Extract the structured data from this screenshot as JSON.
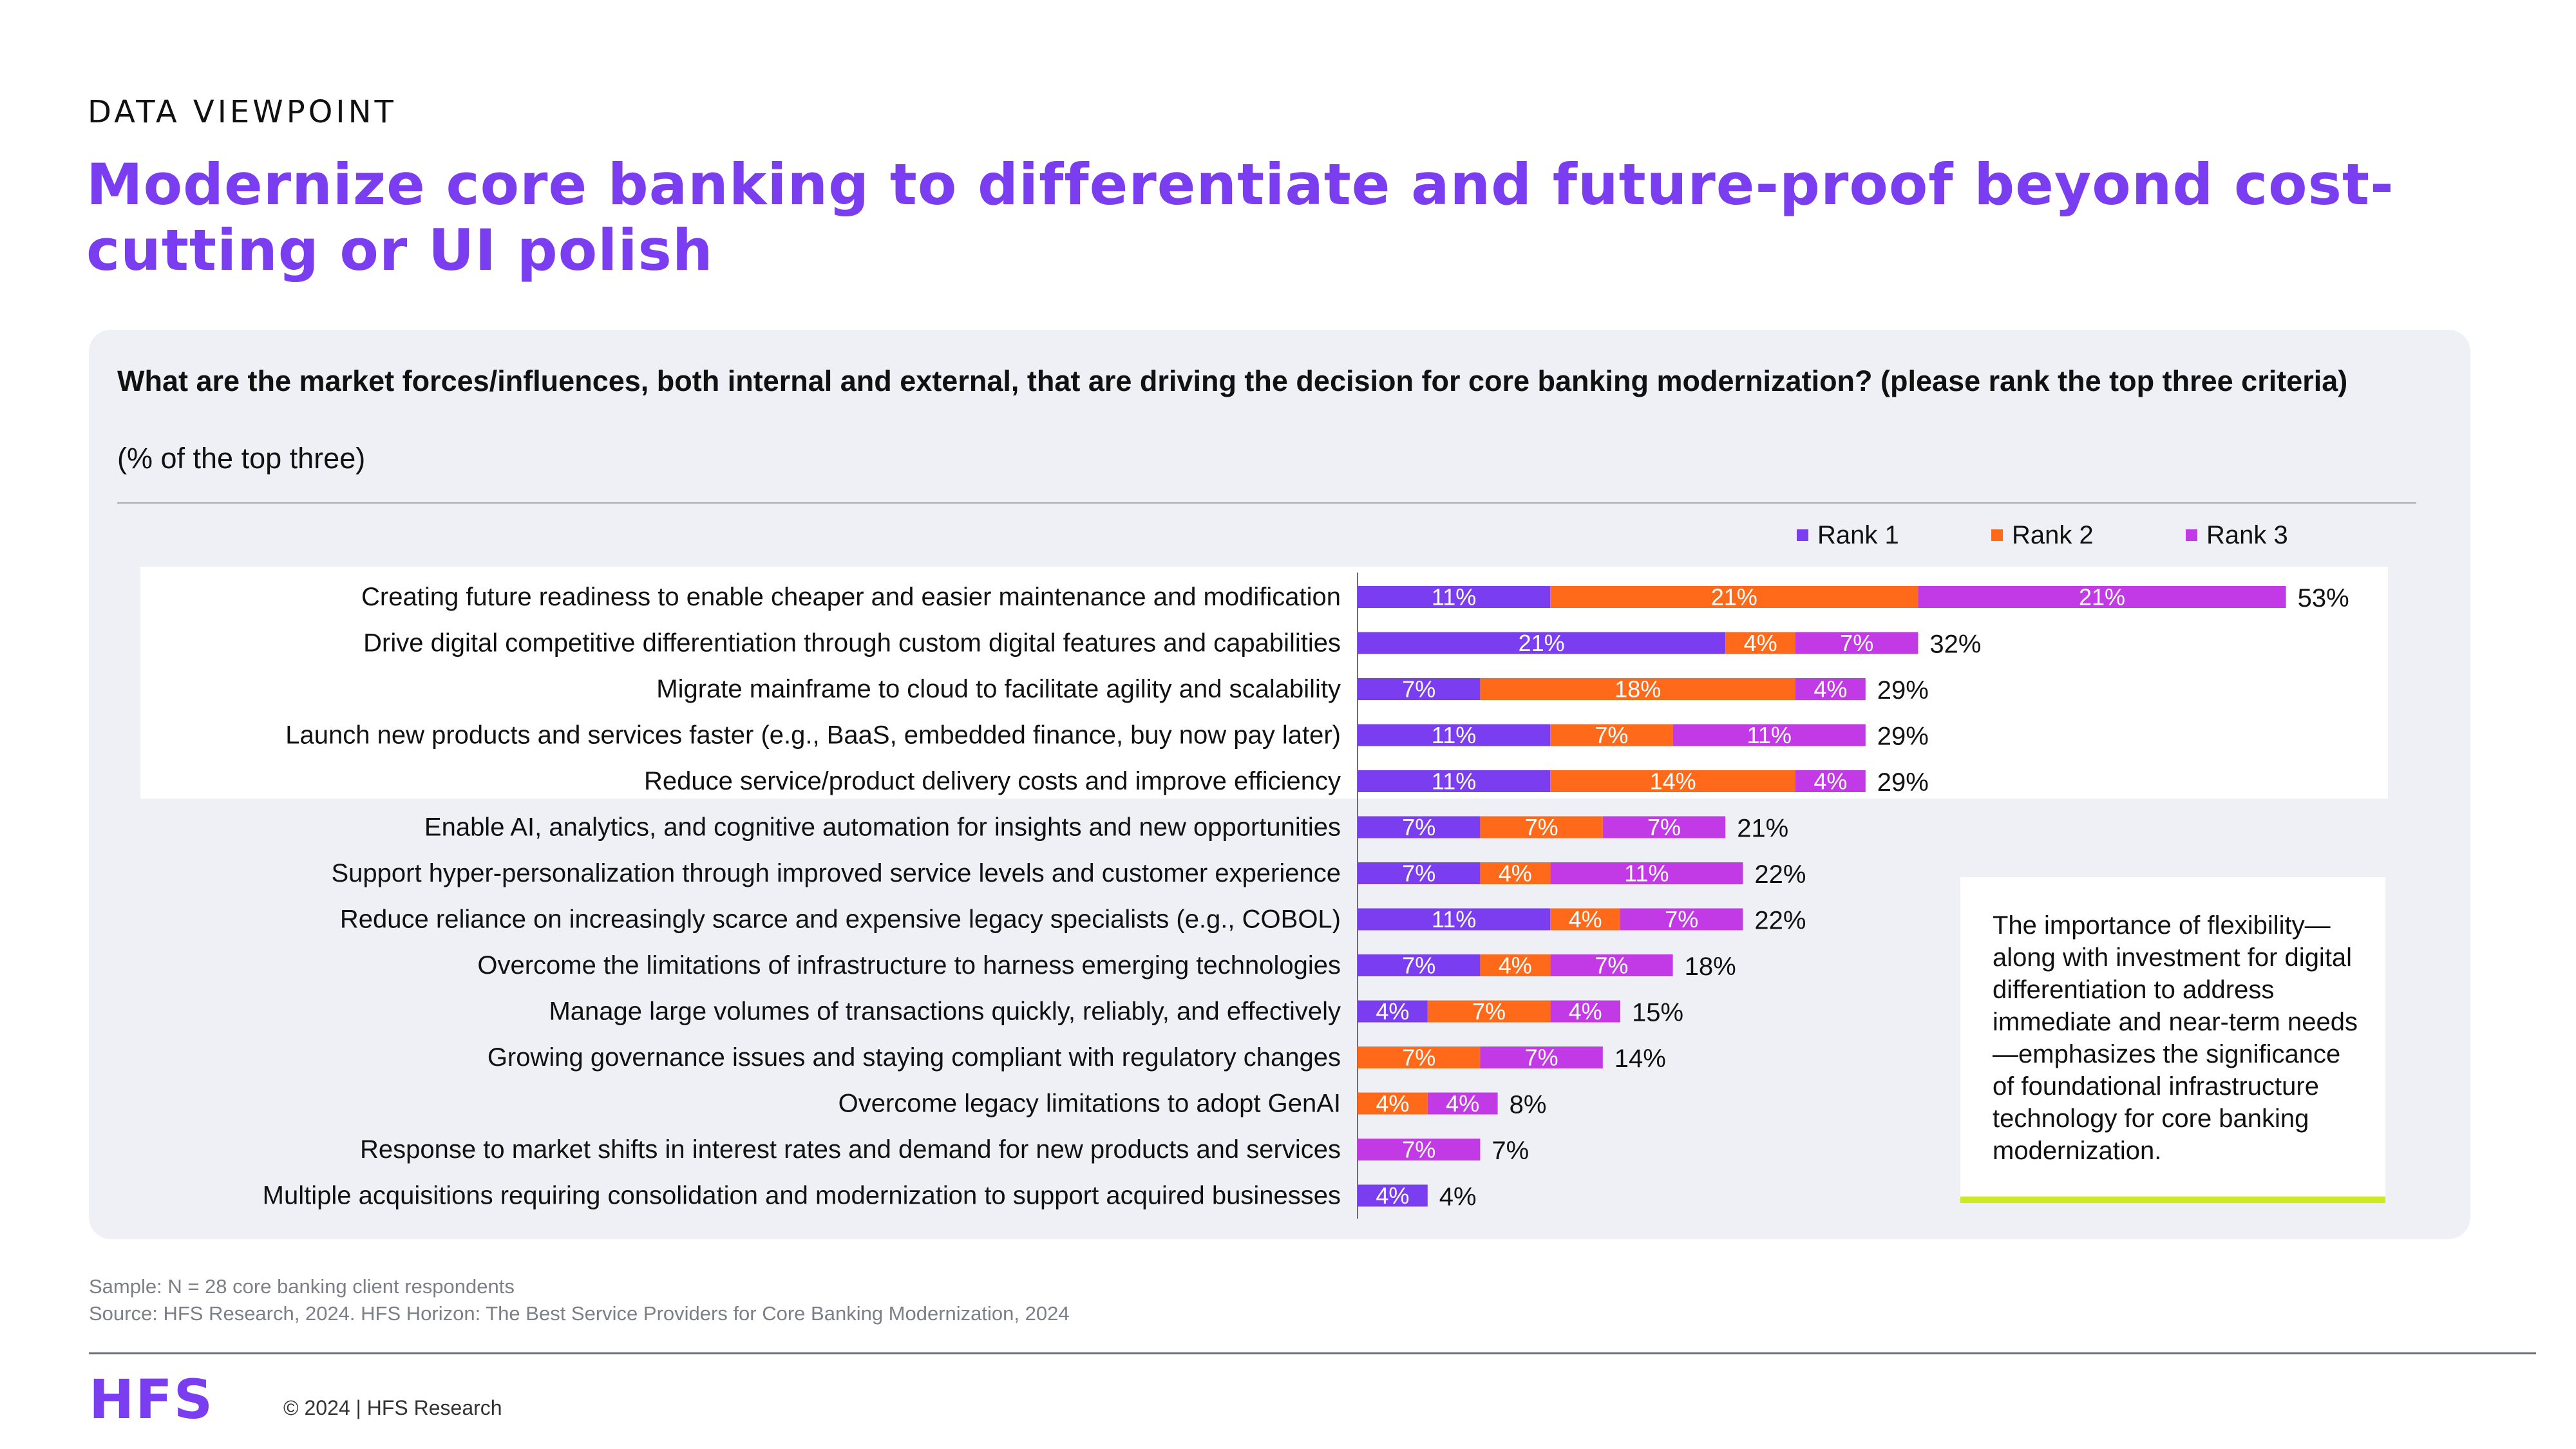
{
  "header": {
    "eyebrow": "DATA VIEWPOINT",
    "headline": "Modernize core banking to differentiate and future-proof beyond cost-cutting or UI polish"
  },
  "survey": {
    "question": "What are the market forces/influences, both internal and external, that are driving the decision for core banking modernization? (please rank the top three criteria)",
    "subtitle": "(% of the top three)"
  },
  "colors": {
    "rank1": "#7a3df0",
    "rank2": "#ff6a1a",
    "rank3": "#c23ae6",
    "accent_line": "#cde923",
    "panel": "#eef0f5"
  },
  "chart_data": {
    "type": "bar",
    "orientation": "horizontal",
    "stacked": true,
    "xlim": [
      0,
      60
    ],
    "legend_position": "top-right",
    "series": [
      {
        "name": "Rank 1",
        "values": [
          11,
          21,
          7,
          11,
          11,
          7,
          7,
          11,
          7,
          4,
          null,
          null,
          null,
          4
        ]
      },
      {
        "name": "Rank 2",
        "values": [
          21,
          4,
          18,
          7,
          14,
          7,
          4,
          4,
          4,
          7,
          7,
          4,
          null,
          null
        ]
      },
      {
        "name": "Rank 3",
        "values": [
          21,
          7,
          4,
          11,
          4,
          7,
          11,
          7,
          7,
          4,
          7,
          4,
          7,
          null
        ]
      }
    ],
    "categories": [
      "Creating future readiness to enable cheaper and easier maintenance and modification",
      "Drive digital competitive differentiation through custom digital features and capabilities",
      "Migrate mainframe to cloud to facilitate agility and scalability",
      "Launch new products and services faster (e.g., BaaS, embedded finance, buy now pay later)",
      "Reduce service/product delivery costs and improve efficiency",
      "Enable AI, analytics, and cognitive automation for insights and new opportunities",
      "Support hyper-personalization through improved service levels and customer experience",
      "Reduce reliance on increasingly scarce and expensive legacy specialists (e.g., COBOL)",
      "Overcome the limitations of infrastructure to harness emerging technologies",
      "Manage large volumes of transactions quickly, reliably, and effectively",
      "Growing governance issues and staying compliant with regulatory changes",
      "Overcome legacy limitations to adopt GenAI",
      "Response to market shifts in interest rates and demand for new products and services",
      "Multiple acquisitions requiring consolidation and modernization to support acquired businesses"
    ],
    "totals": [
      "53%",
      "32%",
      "29%",
      "29%",
      "29%",
      "21%",
      "22%",
      "22%",
      "18%",
      "15%",
      "14%",
      "8%",
      "7%",
      "4%"
    ],
    "highlighted_rows": 5
  },
  "callout": {
    "text": "The importance of flexibility—along with investment for digital differentiation to address immediate and near-term needs—emphasizes the significance of foundational infrastructure technology for core banking modernization."
  },
  "footer": {
    "sample": "Sample: N = 28 core banking client respondents",
    "source": "Source: HFS Research, 2024. HFS Horizon: The Best Service Providers for Core Banking Modernization, 2024",
    "logo": "HFS",
    "copyright": "© 2024 | HFS Research"
  }
}
